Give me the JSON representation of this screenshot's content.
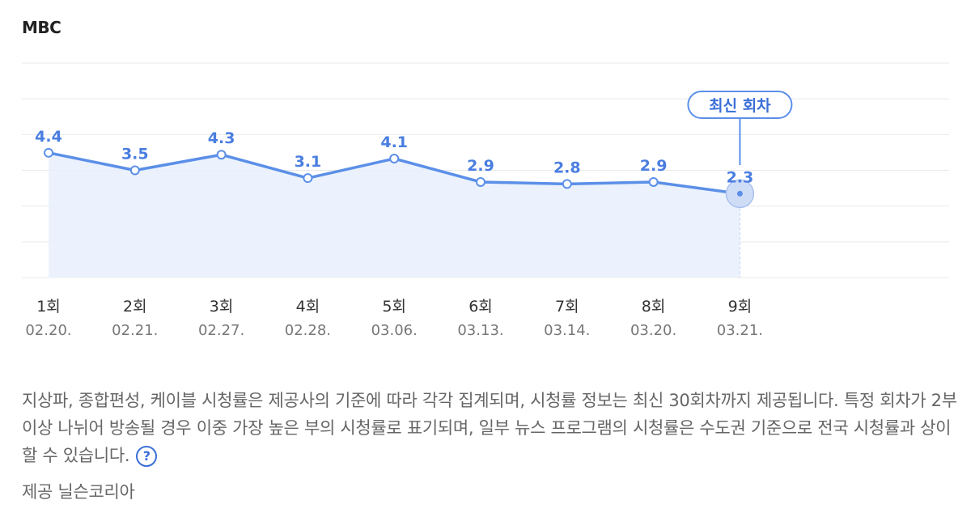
{
  "header": {
    "channel": "MBC"
  },
  "chart_data": {
    "type": "line",
    "categories": [
      "1회",
      "2회",
      "3회",
      "4회",
      "5회",
      "6회",
      "7회",
      "8회",
      "9회"
    ],
    "dates": [
      "02.20.",
      "02.21.",
      "02.27.",
      "02.28.",
      "03.06.",
      "03.13.",
      "03.14.",
      "03.20.",
      "03.21."
    ],
    "values": [
      4.4,
      3.5,
      4.3,
      3.1,
      4.1,
      2.9,
      2.8,
      2.9,
      2.3
    ],
    "data_labels": [
      "4.4",
      "3.5",
      "4.3",
      "3.1",
      "4.1",
      "2.9",
      "2.8",
      "2.9",
      "2.3"
    ],
    "latest_badge": "최신 회차",
    "ylim": [
      -2,
      9
    ],
    "grid": true,
    "colors": {
      "line": "#5b8fe8",
      "area": "#e8f0fd",
      "label": "#4a7ee0",
      "grid": "#e9e9e9"
    }
  },
  "notice": {
    "text": "지상파, 종합편성, 케이블 시청률은 제공사의 기준에 따라 각각 집계되며, 시청률 정보는 최신 30회차까지 제공됩니다. 특정 회차가 2부이상 나뉘어 방송될 경우 이중 가장 높은 부의 시청률로 표기되며, 일부 뉴스 프로그램의 시청률은 수도권 기준으로 전국 시청률과 상이할 수 있습니다.",
    "help_icon": "?"
  },
  "source": "제공 닐슨코리아"
}
